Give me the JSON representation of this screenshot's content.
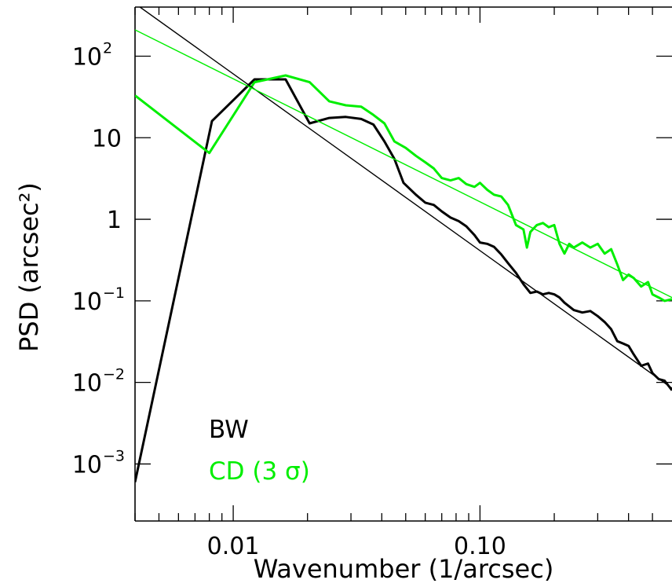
{
  "chart_data": {
    "type": "line",
    "xlabel": "Wavenumber (1/arcsec)",
    "ylabel": "PSD (arcsec²)",
    "x_scale": "log",
    "y_scale": "log",
    "xlim": [
      0.004,
      0.6
    ],
    "ylim": [
      0.0002,
      400
    ],
    "grid": false,
    "legend_position": "bottom-left",
    "x_tick_labels": [
      {
        "value": 0.01,
        "label": "0.01"
      },
      {
        "value": 0.1,
        "label": "0.10"
      }
    ],
    "y_tick_labels": [
      {
        "value": 100,
        "mantissa": "10",
        "exp": "2"
      },
      {
        "value": 10,
        "mantissa": "10",
        "exp": ""
      },
      {
        "value": 1,
        "mantissa": "1",
        "exp": ""
      },
      {
        "value": 0.1,
        "mantissa": "10",
        "exp": "−1"
      },
      {
        "value": 0.01,
        "mantissa": "10",
        "exp": "−2"
      },
      {
        "value": 0.001,
        "mantissa": "10",
        "exp": "−3"
      }
    ],
    "series": [
      {
        "name": "BW",
        "color": "#000000",
        "kind": "data",
        "points": [
          [
            0.004,
            0.0006
          ],
          [
            0.0082,
            16
          ],
          [
            0.0122,
            52
          ],
          [
            0.0163,
            52
          ],
          [
            0.0204,
            15
          ],
          [
            0.0245,
            17.5
          ],
          [
            0.0286,
            18
          ],
          [
            0.033,
            17
          ],
          [
            0.037,
            14.5
          ],
          [
            0.041,
            9
          ],
          [
            0.045,
            5.5
          ],
          [
            0.049,
            2.8
          ],
          [
            0.055,
            2.0
          ],
          [
            0.06,
            1.6
          ],
          [
            0.065,
            1.5
          ],
          [
            0.07,
            1.25
          ],
          [
            0.076,
            1.05
          ],
          [
            0.082,
            0.95
          ],
          [
            0.088,
            0.82
          ],
          [
            0.095,
            0.64
          ],
          [
            0.1,
            0.52
          ],
          [
            0.107,
            0.5
          ],
          [
            0.114,
            0.46
          ],
          [
            0.122,
            0.37
          ],
          [
            0.13,
            0.29
          ],
          [
            0.14,
            0.22
          ],
          [
            0.15,
            0.16
          ],
          [
            0.16,
            0.125
          ],
          [
            0.17,
            0.13
          ],
          [
            0.18,
            0.12
          ],
          [
            0.19,
            0.125
          ],
          [
            0.2,
            0.12
          ],
          [
            0.21,
            0.11
          ],
          [
            0.22,
            0.095
          ],
          [
            0.24,
            0.077
          ],
          [
            0.26,
            0.072
          ],
          [
            0.28,
            0.075
          ],
          [
            0.3,
            0.065
          ],
          [
            0.32,
            0.055
          ],
          [
            0.34,
            0.045
          ],
          [
            0.36,
            0.032
          ],
          [
            0.38,
            0.03
          ],
          [
            0.4,
            0.028
          ],
          [
            0.42,
            0.022
          ],
          [
            0.45,
            0.016
          ],
          [
            0.48,
            0.017
          ],
          [
            0.5,
            0.013
          ],
          [
            0.53,
            0.011
          ],
          [
            0.56,
            0.0105
          ],
          [
            0.6,
            0.008
          ]
        ]
      },
      {
        "name": "CD (3 σ)",
        "color": "#00ee00",
        "kind": "data",
        "points": [
          [
            0.004,
            33
          ],
          [
            0.008,
            6.5
          ],
          [
            0.0122,
            48
          ],
          [
            0.0163,
            58
          ],
          [
            0.0204,
            48
          ],
          [
            0.0245,
            28
          ],
          [
            0.0286,
            25
          ],
          [
            0.033,
            24
          ],
          [
            0.037,
            19
          ],
          [
            0.041,
            15
          ],
          [
            0.045,
            9
          ],
          [
            0.05,
            7.5
          ],
          [
            0.055,
            6
          ],
          [
            0.06,
            5
          ],
          [
            0.065,
            4.2
          ],
          [
            0.07,
            3.2
          ],
          [
            0.076,
            3.0
          ],
          [
            0.082,
            3.2
          ],
          [
            0.088,
            2.7
          ],
          [
            0.095,
            2.5
          ],
          [
            0.1,
            2.8
          ],
          [
            0.107,
            2.3
          ],
          [
            0.114,
            2.0
          ],
          [
            0.122,
            1.9
          ],
          [
            0.13,
            1.5
          ],
          [
            0.14,
            0.85
          ],
          [
            0.15,
            0.75
          ],
          [
            0.155,
            0.45
          ],
          [
            0.16,
            0.7
          ],
          [
            0.17,
            0.85
          ],
          [
            0.18,
            0.9
          ],
          [
            0.19,
            0.8
          ],
          [
            0.2,
            0.85
          ],
          [
            0.21,
            0.5
          ],
          [
            0.22,
            0.38
          ],
          [
            0.23,
            0.5
          ],
          [
            0.24,
            0.45
          ],
          [
            0.26,
            0.52
          ],
          [
            0.28,
            0.45
          ],
          [
            0.3,
            0.5
          ],
          [
            0.32,
            0.38
          ],
          [
            0.34,
            0.43
          ],
          [
            0.36,
            0.28
          ],
          [
            0.38,
            0.18
          ],
          [
            0.4,
            0.21
          ],
          [
            0.42,
            0.19
          ],
          [
            0.45,
            0.15
          ],
          [
            0.48,
            0.17
          ],
          [
            0.5,
            0.12
          ],
          [
            0.53,
            0.11
          ],
          [
            0.56,
            0.1
          ],
          [
            0.6,
            0.105
          ]
        ]
      },
      {
        "name": "",
        "color": "#000000",
        "kind": "fit",
        "points": [
          [
            0.00419,
            400
          ],
          [
            0.6,
            0.0085
          ]
        ]
      },
      {
        "name": "",
        "color": "#00ee00",
        "kind": "fit",
        "points": [
          [
            0.004,
            210
          ],
          [
            0.6,
            0.11
          ]
        ]
      }
    ],
    "legend": [
      {
        "label": "BW",
        "color": "#000000"
      },
      {
        "label": "CD (3 σ)",
        "color": "#00ee00"
      }
    ]
  }
}
